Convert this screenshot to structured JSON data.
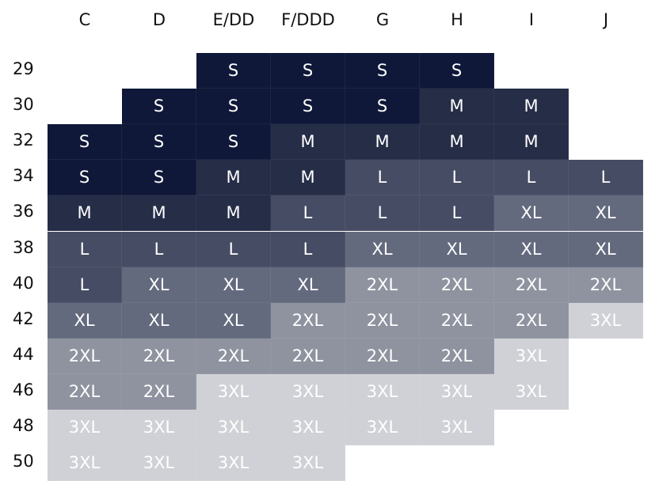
{
  "columns": [
    "C",
    "D",
    "E/DD",
    "F/DDD",
    "G",
    "H",
    "I",
    "J"
  ],
  "rows": [
    {
      "band": "29",
      "sizes": [
        "",
        "",
        "S",
        "S",
        "S",
        "S",
        "",
        ""
      ]
    },
    {
      "band": "30",
      "sizes": [
        "",
        "S",
        "S",
        "S",
        "S",
        "M",
        "M",
        ""
      ]
    },
    {
      "band": "32",
      "sizes": [
        "S",
        "S",
        "S",
        "M",
        "M",
        "M",
        "M",
        ""
      ]
    },
    {
      "band": "34",
      "sizes": [
        "S",
        "S",
        "M",
        "M",
        "L",
        "L",
        "L",
        "L"
      ]
    },
    {
      "band": "36",
      "sizes": [
        "M",
        "M",
        "M",
        "L",
        "L",
        "L",
        "XL",
        "XL"
      ]
    },
    {
      "band": "38",
      "sizes": [
        "L",
        "L",
        "L",
        "L",
        "XL",
        "XL",
        "XL",
        "XL"
      ]
    },
    {
      "band": "40",
      "sizes": [
        "L",
        "XL",
        "XL",
        "XL",
        "2XL",
        "2XL",
        "2XL",
        "2XL"
      ]
    },
    {
      "band": "42",
      "sizes": [
        "XL",
        "XL",
        "XL",
        "2XL",
        "2XL",
        "2XL",
        "2XL",
        "3XL"
      ]
    },
    {
      "band": "44",
      "sizes": [
        "2XL",
        "2XL",
        "2XL",
        "2XL",
        "2XL",
        "2XL",
        "3XL",
        ""
      ]
    },
    {
      "band": "46",
      "sizes": [
        "2XL",
        "2XL",
        "3XL",
        "3XL",
        "3XL",
        "3XL",
        "3XL",
        ""
      ]
    },
    {
      "band": "48",
      "sizes": [
        "3XL",
        "3XL",
        "3XL",
        "3XL",
        "3XL",
        "3XL",
        "",
        ""
      ]
    },
    {
      "band": "50",
      "sizes": [
        "3XL",
        "3XL",
        "3XL",
        "3XL",
        "",
        "",
        "",
        ""
      ]
    }
  ],
  "size_colors": {
    "S": "#0f1838",
    "M": "#252d47",
    "L": "#464c63",
    "XL": "#646a7e",
    "2XL": "#8f93a0",
    "3XL": "#d0d1d6"
  }
}
